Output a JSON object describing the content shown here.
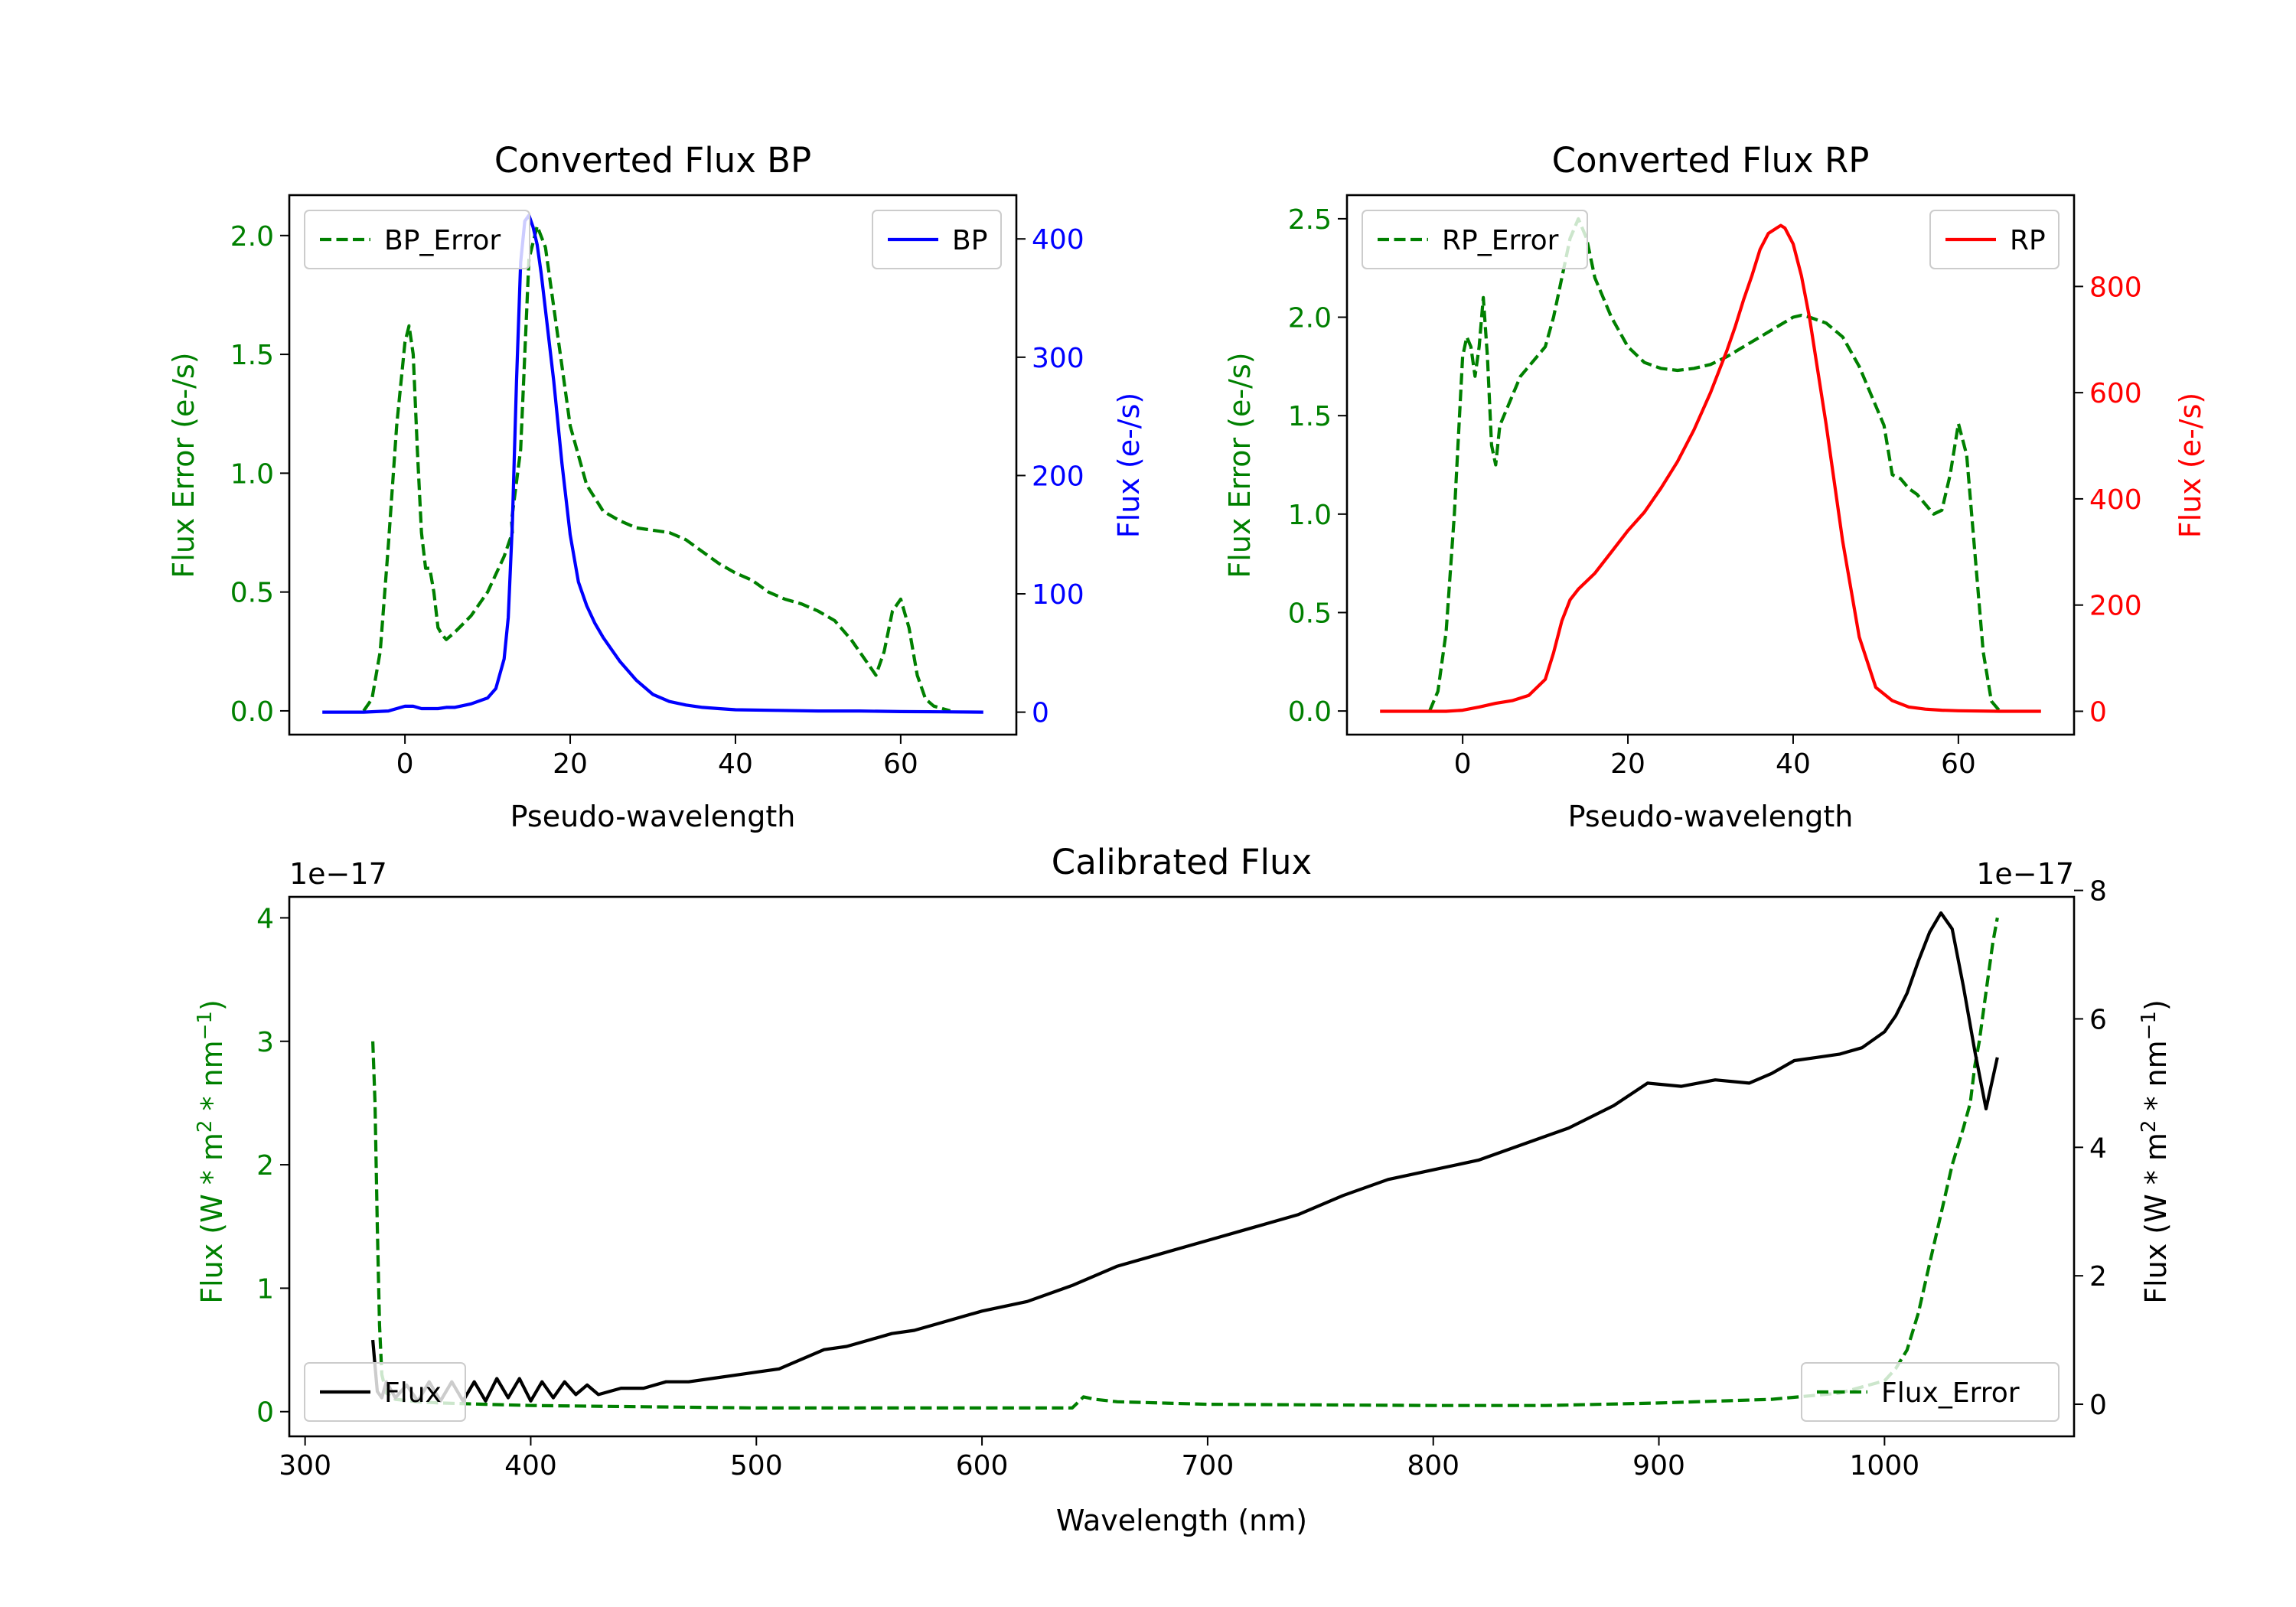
{
  "colors": {
    "green": "#008000",
    "blue": "#0000ff",
    "red": "#ff0000",
    "black": "#000000"
  },
  "chart_data": [
    {
      "type": "line",
      "id": "bp",
      "title": "Converted Flux BP",
      "xlabel": "Pseudo-wavelength",
      "xlim": [
        -14,
        74
      ],
      "xticks": [
        0,
        20,
        40,
        60
      ],
      "left_axis": {
        "label": "Flux Error (e-/s)",
        "color": "#008000",
        "ylim": [
          -0.1,
          2.17
        ],
        "ticks": [
          0.0,
          0.5,
          1.0,
          1.5,
          2.0
        ],
        "tick_labels": [
          "0.0",
          "0.5",
          "1.0",
          "1.5",
          "2.0"
        ]
      },
      "right_axis": {
        "label": "Flux (e-/s)",
        "color": "#0000ff",
        "ylim": [
          -19,
          437
        ],
        "ticks": [
          0,
          100,
          200,
          300,
          400
        ],
        "tick_labels": [
          "0",
          "100",
          "200",
          "300",
          "400"
        ]
      },
      "series": [
        {
          "name": "BP_Error",
          "axis": "left",
          "style": "dashed",
          "color": "#008000",
          "x": [
            -5,
            -4,
            -3,
            -2,
            -1,
            0,
            0.5,
            1,
            1.5,
            2,
            2.5,
            3,
            3.5,
            4,
            4.5,
            5,
            6,
            8,
            10,
            12,
            13,
            12.9,
            14,
            14.5,
            15,
            16,
            17,
            18,
            19,
            20,
            22,
            24,
            26,
            28,
            30,
            32,
            34,
            36,
            38,
            40,
            42,
            44,
            46,
            48,
            50,
            52,
            54,
            56,
            57,
            58,
            59,
            60,
            61,
            62,
            63,
            64,
            65,
            66
          ],
          "y": [
            0.0,
            0.05,
            0.25,
            0.7,
            1.2,
            1.55,
            1.62,
            1.5,
            1.1,
            0.75,
            0.6,
            0.6,
            0.5,
            0.35,
            0.32,
            0.3,
            0.33,
            0.4,
            0.5,
            0.65,
            0.75,
            0.8,
            1.1,
            1.5,
            1.9,
            2.04,
            1.95,
            1.7,
            1.45,
            1.2,
            0.95,
            0.84,
            0.8,
            0.77,
            0.76,
            0.75,
            0.72,
            0.67,
            0.62,
            0.58,
            0.55,
            0.5,
            0.47,
            0.45,
            0.42,
            0.38,
            0.3,
            0.2,
            0.15,
            0.25,
            0.42,
            0.47,
            0.35,
            0.15,
            0.05,
            0.02,
            0.01,
            0.0
          ]
        },
        {
          "name": "BP",
          "axis": "right",
          "style": "solid",
          "color": "#0000ff",
          "x": [
            -10,
            -5,
            -2,
            0,
            1,
            2,
            3,
            4,
            5,
            6,
            8,
            10,
            11,
            12,
            12.5,
            13,
            13.5,
            14,
            14.5,
            15,
            15.5,
            16,
            16.5,
            17,
            18,
            19,
            20,
            21,
            22,
            23,
            24,
            25,
            26,
            28,
            30,
            32,
            34,
            36,
            38,
            40,
            45,
            50,
            55,
            60,
            65,
            70
          ],
          "y": [
            0,
            0,
            1,
            5,
            5,
            3,
            3,
            3,
            4,
            4,
            7,
            12,
            20,
            45,
            80,
            160,
            280,
            380,
            415,
            420,
            410,
            395,
            370,
            340,
            280,
            210,
            150,
            110,
            90,
            75,
            63,
            53,
            43,
            27,
            15,
            9,
            6,
            4,
            3,
            2,
            1.5,
            1,
            1,
            0.5,
            0.3,
            0
          ]
        }
      ],
      "legend": [
        {
          "label": "BP_Error",
          "placement": "upper-left"
        },
        {
          "label": "BP",
          "placement": "upper-right"
        }
      ]
    },
    {
      "type": "line",
      "id": "rp",
      "title": "Converted Flux RP",
      "xlabel": "Pseudo-wavelength",
      "xlim": [
        -14,
        74
      ],
      "xticks": [
        0,
        20,
        40,
        60
      ],
      "left_axis": {
        "label": "Flux Error (e-/s)",
        "color": "#008000",
        "ylim": [
          -0.12,
          2.62
        ],
        "ticks": [
          0.0,
          0.5,
          1.0,
          1.5,
          2.0,
          2.5
        ],
        "tick_labels": [
          "0.0",
          "0.5",
          "1.0",
          "1.5",
          "2.0",
          "2.5"
        ]
      },
      "right_axis": {
        "label": "Flux (e-/s)",
        "color": "#ff0000",
        "ylim": [
          -44,
          972
        ],
        "ticks": [
          0,
          200,
          400,
          600,
          800
        ],
        "tick_labels": [
          "0",
          "200",
          "400",
          "600",
          "800"
        ]
      },
      "series": [
        {
          "name": "RP_Error",
          "axis": "left",
          "style": "dashed",
          "color": "#008000",
          "x": [
            -4,
            -3,
            -2,
            -1,
            0,
            0.5,
            1,
            1.5,
            2,
            2.5,
            3,
            3.5,
            4,
            4.5,
            5,
            6,
            7,
            8,
            9,
            10,
            11,
            12,
            13,
            14,
            15,
            16,
            18,
            20,
            22,
            24,
            26,
            28,
            30,
            32,
            34,
            36,
            38,
            40,
            41,
            42,
            44,
            46,
            48,
            50,
            51,
            52,
            53,
            54,
            55,
            56,
            57,
            58,
            59,
            60,
            61,
            62,
            63,
            64,
            65
          ],
          "y": [
            0.0,
            0.1,
            0.4,
            1.0,
            1.8,
            1.9,
            1.85,
            1.7,
            1.85,
            2.1,
            1.8,
            1.35,
            1.25,
            1.45,
            1.5,
            1.6,
            1.7,
            1.75,
            1.8,
            1.85,
            2.0,
            2.2,
            2.4,
            2.5,
            2.4,
            2.2,
            2.0,
            1.85,
            1.77,
            1.74,
            1.73,
            1.74,
            1.76,
            1.8,
            1.85,
            1.9,
            1.95,
            2.0,
            2.01,
            2.0,
            1.97,
            1.9,
            1.75,
            1.55,
            1.45,
            1.2,
            1.18,
            1.13,
            1.1,
            1.05,
            1.0,
            1.02,
            1.2,
            1.46,
            1.3,
            0.8,
            0.3,
            0.05,
            0.0
          ]
        },
        {
          "name": "RP",
          "axis": "right",
          "style": "solid",
          "color": "#ff0000",
          "x": [
            -10,
            -5,
            -2,
            0,
            2,
            4,
            6,
            8,
            10,
            11,
            12,
            13,
            14,
            15,
            16,
            18,
            20,
            22,
            24,
            26,
            28,
            30,
            32,
            33,
            34,
            35,
            36,
            37,
            38,
            38.5,
            39,
            40,
            41,
            42,
            43,
            44,
            46,
            48,
            50,
            52,
            54,
            56,
            58,
            60,
            65,
            70
          ],
          "y": [
            0,
            0,
            0,
            2,
            8,
            15,
            20,
            30,
            60,
            110,
            170,
            210,
            230,
            245,
            260,
            300,
            340,
            375,
            420,
            470,
            530,
            600,
            680,
            725,
            775,
            820,
            870,
            900,
            910,
            915,
            910,
            880,
            820,
            740,
            640,
            540,
            320,
            140,
            45,
            20,
            8,
            4,
            2,
            1,
            0,
            0
          ]
        }
      ],
      "legend": [
        {
          "label": "RP_Error",
          "placement": "upper-left"
        },
        {
          "label": "RP",
          "placement": "upper-right"
        }
      ]
    },
    {
      "type": "line",
      "id": "cal",
      "title": "Calibrated Flux",
      "xlabel": "Wavelength (nm)",
      "xlim": [
        293,
        1084
      ],
      "xticks": [
        300,
        400,
        500,
        600,
        700,
        800,
        900,
        1000
      ],
      "left_axis": {
        "label": "Flux (W * m^2 * nm^-1)",
        "color": "#008000",
        "offset_text": "1e−17",
        "ylim": [
          -0.2,
          4.17
        ],
        "ticks": [
          0,
          1,
          2,
          3,
          4
        ],
        "tick_labels": [
          "0",
          "1",
          "2",
          "3",
          "4"
        ]
      },
      "right_axis": {
        "label": "Flux (W * m^2 * nm^-1)",
        "color": "#000000",
        "offset_text": "1e−17",
        "ylim": [
          -0.5,
          7.9
        ],
        "ticks": [
          0,
          2,
          4,
          6,
          8
        ],
        "tick_labels": [
          "0",
          "2",
          "4",
          "6",
          "8"
        ]
      },
      "series": [
        {
          "name": "Flux_Error",
          "axis": "left",
          "style": "dashed",
          "color": "#008000",
          "x": [
            330,
            331,
            332,
            333,
            334,
            336,
            340,
            350,
            360,
            380,
            400,
            450,
            500,
            550,
            600,
            640,
            645,
            650,
            660,
            700,
            800,
            850,
            900,
            950,
            980,
            1000,
            1005,
            1010,
            1015,
            1020,
            1025,
            1030,
            1035,
            1038,
            1040,
            1042,
            1045,
            1048,
            1050
          ],
          "y": [
            3.0,
            2.5,
            1.5,
            0.7,
            0.3,
            0.15,
            0.1,
            0.08,
            0.07,
            0.06,
            0.05,
            0.04,
            0.03,
            0.03,
            0.03,
            0.03,
            0.12,
            0.1,
            0.08,
            0.06,
            0.05,
            0.05,
            0.07,
            0.1,
            0.15,
            0.25,
            0.35,
            0.5,
            0.8,
            1.2,
            1.6,
            2.0,
            2.3,
            2.5,
            2.8,
            3.0,
            3.4,
            3.8,
            4.0
          ]
        },
        {
          "name": "Flux",
          "axis": "right",
          "style": "solid",
          "color": "#000000",
          "x": [
            330,
            331,
            332,
            334,
            336,
            340,
            345,
            350,
            355,
            360,
            365,
            370,
            375,
            380,
            385,
            390,
            395,
            400,
            405,
            410,
            415,
            420,
            425,
            430,
            440,
            450,
            460,
            470,
            480,
            490,
            500,
            510,
            520,
            530,
            540,
            550,
            560,
            570,
            580,
            600,
            620,
            640,
            660,
            680,
            700,
            720,
            740,
            760,
            780,
            800,
            820,
            840,
            860,
            880,
            895,
            910,
            925,
            940,
            950,
            960,
            970,
            980,
            990,
            1000,
            1005,
            1010,
            1015,
            1020,
            1025,
            1030,
            1035,
            1040,
            1045,
            1050
          ],
          "y": [
            1.0,
            0.6,
            0.2,
            0.1,
            0.35,
            0.1,
            0.3,
            0.05,
            0.35,
            0.05,
            0.35,
            0.05,
            0.35,
            0.05,
            0.4,
            0.1,
            0.4,
            0.05,
            0.35,
            0.1,
            0.35,
            0.15,
            0.3,
            0.15,
            0.25,
            0.25,
            0.35,
            0.35,
            0.4,
            0.45,
            0.5,
            0.55,
            0.7,
            0.85,
            0.9,
            1.0,
            1.1,
            1.15,
            1.25,
            1.45,
            1.6,
            1.85,
            2.15,
            2.35,
            2.55,
            2.75,
            2.95,
            3.25,
            3.5,
            3.65,
            3.8,
            4.05,
            4.3,
            4.65,
            5.0,
            4.95,
            5.05,
            5.0,
            5.15,
            5.35,
            5.4,
            5.45,
            5.55,
            5.8,
            6.05,
            6.4,
            6.9,
            7.35,
            7.65,
            7.4,
            6.5,
            5.5,
            4.6,
            5.4
          ]
        }
      ],
      "legend": [
        {
          "label": "Flux",
          "placement": "lower-left"
        },
        {
          "label": "Flux_Error",
          "placement": "lower-right"
        }
      ]
    }
  ]
}
